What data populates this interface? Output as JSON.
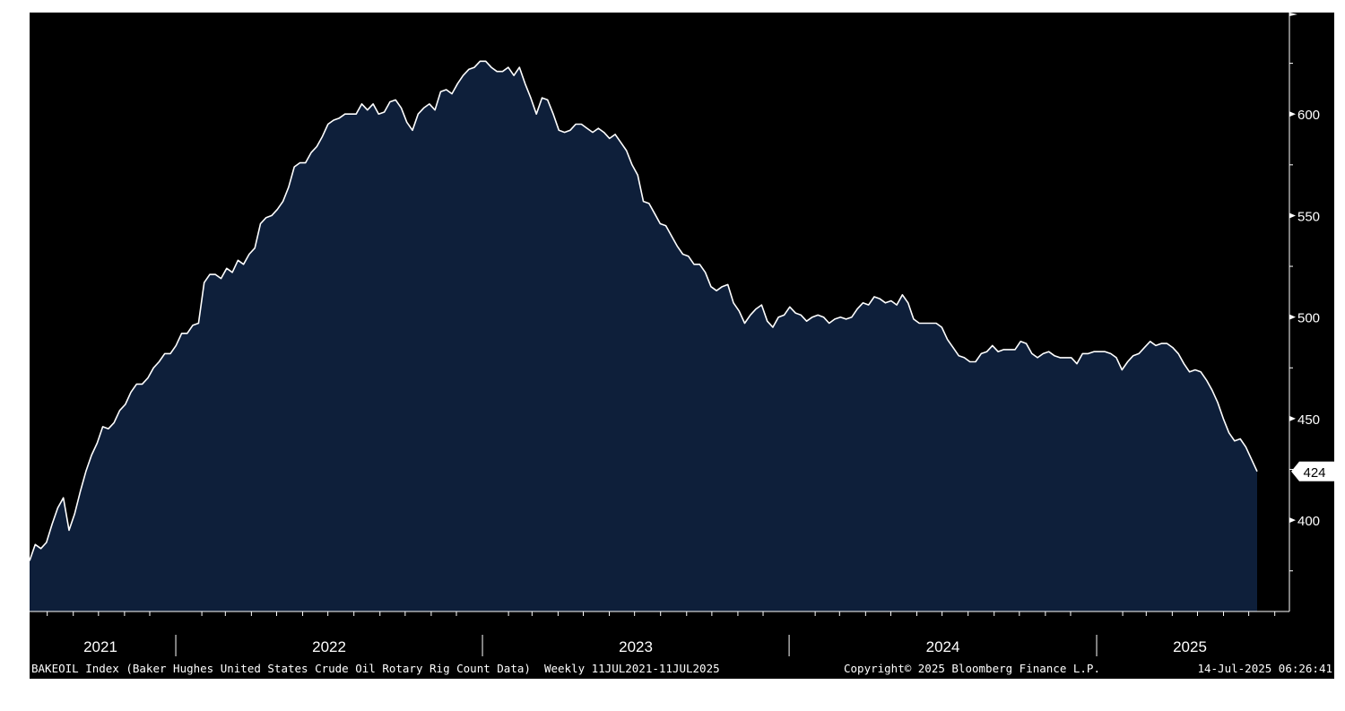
{
  "chart_data": {
    "type": "area",
    "series": [
      {
        "values": [
          380,
          388,
          386,
          389,
          398,
          406,
          411,
          395,
          403,
          414,
          424,
          432,
          438,
          446,
          445,
          448,
          454,
          457,
          463,
          467,
          467,
          470,
          475,
          478,
          482,
          482,
          486,
          492,
          492,
          496,
          497,
          517,
          521,
          521,
          519,
          524,
          522,
          528,
          526,
          531,
          534,
          546,
          549,
          550,
          553,
          557,
          564,
          574,
          576,
          576,
          581,
          584,
          589,
          595,
          597,
          598,
          600,
          600,
          600,
          605,
          602,
          605,
          600,
          601,
          606,
          607,
          603,
          596,
          592,
          600,
          603,
          605,
          602,
          611,
          612,
          610,
          615,
          619,
          622,
          623,
          626,
          626,
          623,
          621,
          621,
          623,
          619,
          623,
          615,
          608,
          600,
          608,
          607,
          600,
          592,
          591,
          592,
          595,
          595,
          593,
          591,
          593,
          591,
          588,
          590,
          586,
          582,
          575,
          570,
          557,
          556,
          551,
          546,
          545,
          540,
          535,
          531,
          530,
          526,
          526,
          522,
          515,
          513,
          515,
          516,
          507,
          503,
          497,
          501,
          504,
          506,
          498,
          495,
          500,
          501,
          505,
          502,
          501,
          498,
          500,
          501,
          500,
          497,
          499,
          500,
          499,
          500,
          504,
          507,
          506,
          510,
          509,
          507,
          508,
          506,
          511,
          507,
          499,
          497,
          497,
          497,
          497,
          495,
          489,
          485,
          481,
          480,
          478,
          478,
          482,
          483,
          486,
          483,
          484,
          484,
          484,
          488,
          487,
          482,
          480,
          482,
          483,
          481,
          480,
          480,
          480,
          477,
          482,
          482,
          483,
          483,
          483,
          482,
          480,
          474,
          478,
          481,
          482,
          485,
          488,
          486,
          487,
          487,
          485,
          482,
          477,
          473,
          474,
          473,
          469,
          464,
          458,
          450,
          443,
          439,
          440,
          436,
          430,
          424
        ]
      }
    ],
    "x_start": "11JUL2021",
    "x_end": "11JUL2025",
    "x_ticks": [
      "2021",
      "2022",
      "2023",
      "2024",
      "2025"
    ],
    "y_ticks": [
      400,
      450,
      500,
      550,
      600
    ],
    "ylim": [
      355,
      650
    ],
    "last_value_label": "424",
    "colors": {
      "background": "#000000",
      "fill": "#0e1f3a",
      "line": "#ffffff",
      "text": "#ffffff"
    }
  },
  "footer": {
    "description": "BAKEOIL Index (Baker Hughes United States Crude Oil Rotary Rig Count Data)  Weekly 11JUL2021-11JUL2025",
    "copyright": "Copyright© 2025 Bloomberg Finance L.P.",
    "timestamp": "14-Jul-2025 06:26:41"
  }
}
